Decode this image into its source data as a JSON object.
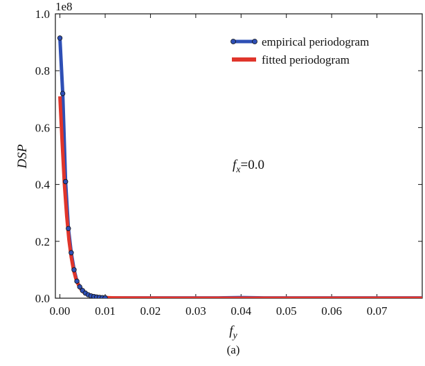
{
  "chart_data": {
    "type": "line",
    "xlabel": "f",
    "xlabel_sub": "y",
    "ylabel": "DSP",
    "y_scale_label": "1e8",
    "caption": "(a)",
    "annotation": {
      "var": "f",
      "sub": "x",
      "rest": "=0.0"
    },
    "xlim": [
      -0.001,
      0.08
    ],
    "ylim": [
      0,
      1.0
    ],
    "xticks": [
      "0.00",
      "0.01",
      "0.02",
      "0.03",
      "0.04",
      "0.05",
      "0.06",
      "0.07"
    ],
    "xtick_values": [
      0,
      0.01,
      0.02,
      0.03,
      0.04,
      0.05,
      0.06,
      0.07
    ],
    "yticks": [
      "0.0",
      "0.2",
      "0.4",
      "0.6",
      "0.8",
      "1.0"
    ],
    "ytick_values": [
      0,
      0.2,
      0.4,
      0.6,
      0.8,
      1.0
    ],
    "legend_position": "top-right",
    "series": [
      {
        "name": "empirical periodogram",
        "color": "#2e4fb5",
        "marker": "circle",
        "x": [
          0.0,
          0.000625,
          0.00125,
          0.001875,
          0.0025,
          0.003125,
          0.00375,
          0.004375,
          0.005,
          0.005625,
          0.00625,
          0.006875,
          0.0075,
          0.008125,
          0.00875,
          0.009375,
          0.01,
          0.011,
          0.012,
          0.014,
          0.016,
          0.018,
          0.02,
          0.025,
          0.03,
          0.035,
          0.04,
          0.045,
          0.05,
          0.055,
          0.06,
          0.065,
          0.07,
          0.075,
          0.08
        ],
        "y": [
          0.915,
          0.72,
          0.41,
          0.245,
          0.16,
          0.1,
          0.06,
          0.04,
          0.027,
          0.018,
          0.012,
          0.008,
          0.006,
          0.004,
          0.003,
          0.002,
          0.0015,
          0.001,
          0.001,
          0.001,
          0.001,
          0.001,
          0.001,
          0.001,
          0.001,
          0.001,
          0.002,
          0.001,
          0.001,
          0.001,
          0.001,
          0.001,
          0.001,
          0.001,
          0.001
        ]
      },
      {
        "name": "fitted periodogram",
        "color": "#e0352b",
        "marker": "none",
        "x": [
          0.0,
          0.0005,
          0.001,
          0.0015,
          0.002,
          0.0025,
          0.003,
          0.0035,
          0.004,
          0.0045,
          0.005,
          0.0055,
          0.006,
          0.0065,
          0.007,
          0.0075,
          0.008,
          0.009,
          0.01,
          0.012,
          0.015,
          0.02,
          0.03,
          0.04,
          0.05,
          0.06,
          0.07,
          0.08
        ],
        "y": [
          0.71,
          0.55,
          0.4,
          0.29,
          0.205,
          0.145,
          0.1,
          0.07,
          0.05,
          0.035,
          0.025,
          0.018,
          0.013,
          0.01,
          0.008,
          0.006,
          0.005,
          0.003,
          0.002,
          0.001,
          0.0005,
          0.0002,
          0.0001,
          0.0001,
          0.0001,
          0.0001,
          0.0001,
          0.0001
        ]
      }
    ]
  }
}
